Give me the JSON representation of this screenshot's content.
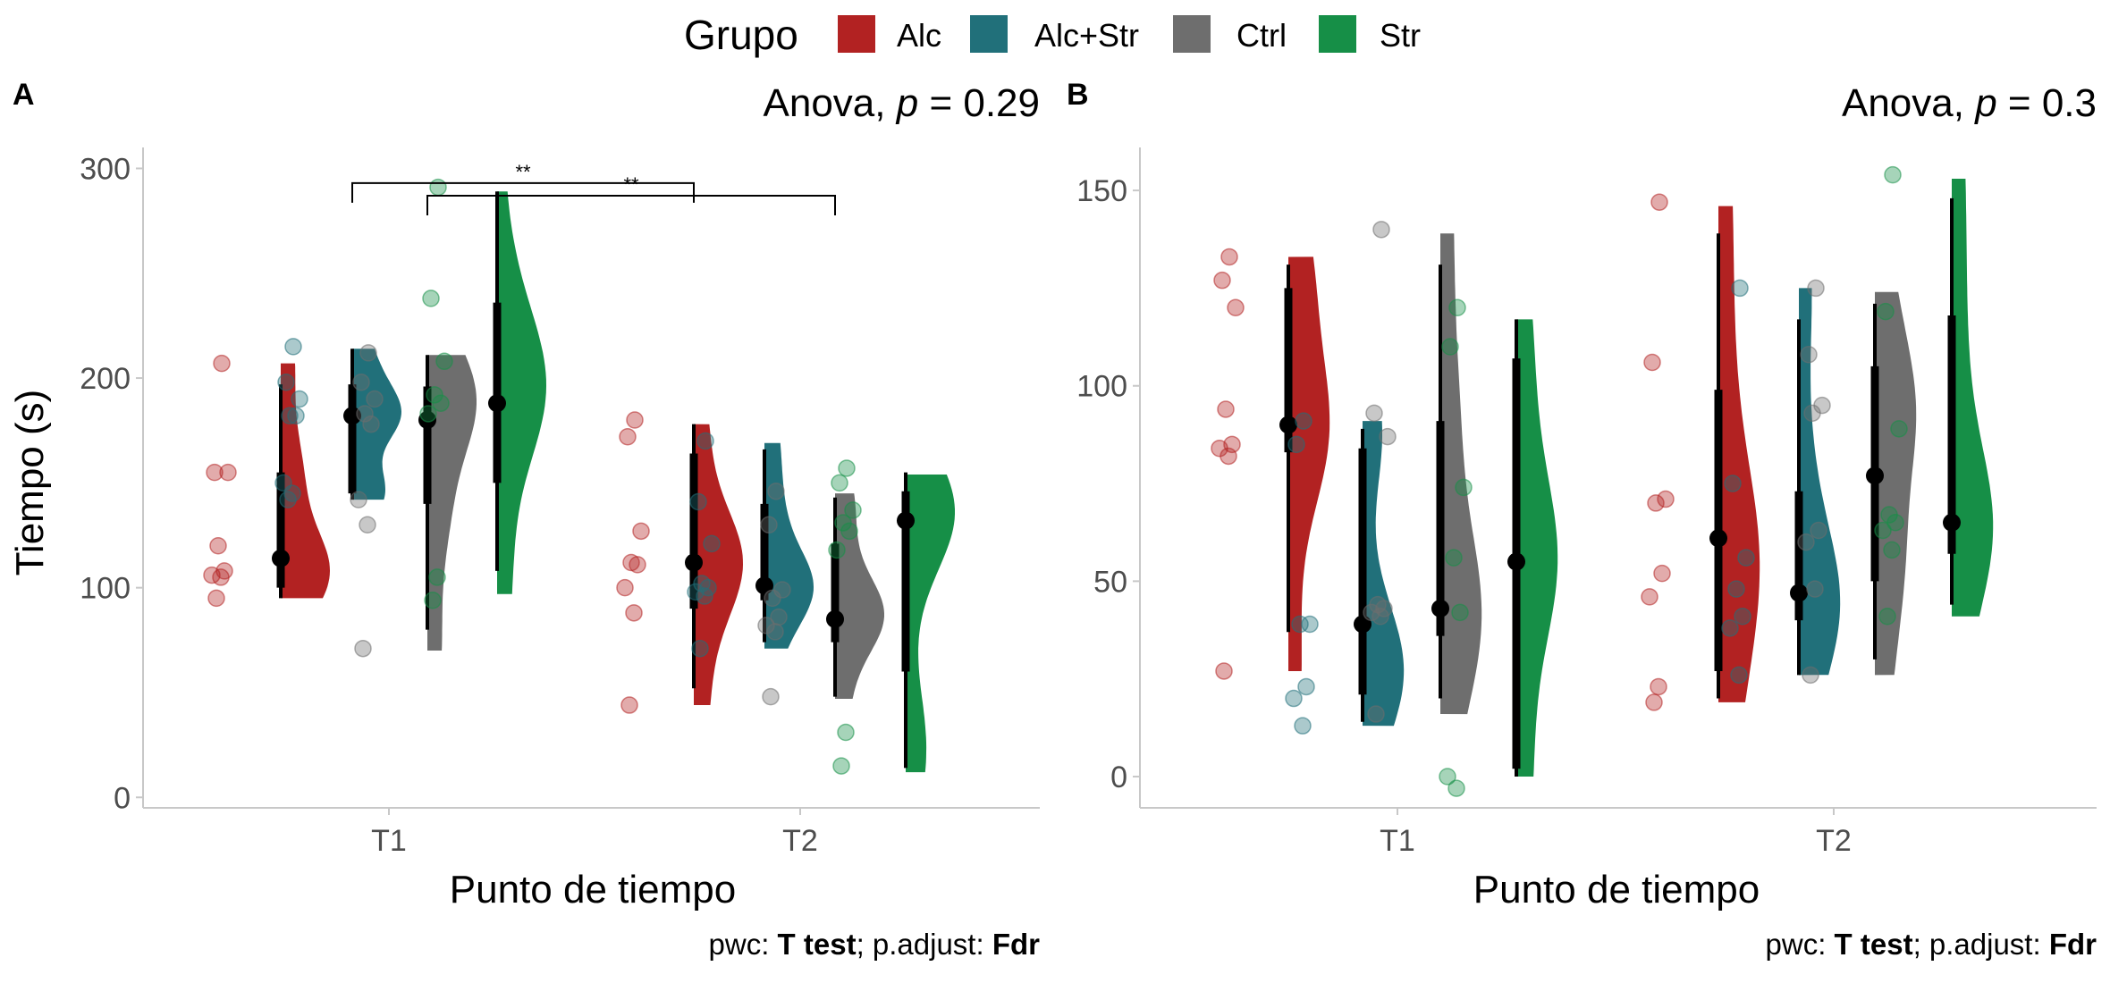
{
  "legend": {
    "title": "Grupo",
    "items": [
      {
        "label": "Alc",
        "color": "#b22222"
      },
      {
        "label": "Alc+Str",
        "color": "#21707a"
      },
      {
        "label": "Ctrl",
        "color": "#6e6e6e"
      },
      {
        "label": "Str",
        "color": "#168f47"
      }
    ]
  },
  "chart_data": [
    {
      "panel": "A",
      "type": "raincloud",
      "title": "Anova, p = 0.29",
      "title_parts": {
        "prefix": "Anova, ",
        "p": "p",
        "suffix": " = 0.29"
      },
      "xlabel": "Punto de tiempo",
      "ylabel": "Tiempo (s)",
      "caption": {
        "pre": "pwc: ",
        "test": "T test",
        "mid": "; p.adjust: ",
        "adj": "Fdr"
      },
      "ylim": [
        -5,
        310
      ],
      "yticks": [
        0,
        100,
        200,
        300
      ],
      "categories": [
        "T1",
        "T2"
      ],
      "groups": [
        "Alc",
        "Alc+Str",
        "Ctrl",
        "Str"
      ],
      "series": {
        "T1": {
          "Alc": {
            "points": [
              207,
              155,
              155,
              120,
              108,
              106,
              105,
              95
            ],
            "median": 114,
            "q1": 100,
            "q3": 155,
            "min": 95,
            "max": 197,
            "vmin": 95,
            "vmax": 207,
            "mode": 108
          },
          "Alc+Str": {
            "points": [
              215,
              198,
              190,
              182,
              182,
              150,
              145,
              142
            ],
            "median": 182,
            "q1": 145,
            "q3": 197,
            "min": 142,
            "max": 214,
            "vmin": 142,
            "vmax": 214,
            "mode": 178
          },
          "Ctrl": {
            "points": [
              212,
              198,
              190,
              183,
              178,
              142,
              130,
              71
            ],
            "median": 180,
            "q1": 140,
            "q3": 196,
            "min": 80,
            "max": 211,
            "vmin": 70,
            "vmax": 211,
            "mode": 190
          },
          "Str": {
            "points": [
              291,
              238,
              208,
              192,
              188,
              183,
              105,
              94
            ],
            "median": 188,
            "q1": 150,
            "q3": 236,
            "min": 108,
            "max": 289,
            "vmin": 97,
            "vmax": 289,
            "mode": 195
          }
        },
        "T2": {
          "Alc": {
            "points": [
              180,
              172,
              127,
              112,
              111,
              100,
              88,
              44
            ],
            "median": 112,
            "q1": 90,
            "q3": 164,
            "min": 52,
            "max": 178,
            "vmin": 44,
            "vmax": 178,
            "mode": 118
          },
          "Alc+Str": {
            "points": [
              170,
              141,
              121,
              102,
              100,
              98,
              96,
              71
            ],
            "median": 101,
            "q1": 94,
            "q3": 140,
            "min": 74,
            "max": 166,
            "vmin": 71,
            "vmax": 169,
            "mode": 100
          },
          "Ctrl": {
            "points": [
              146,
              130,
              99,
              95,
              86,
              82,
              79,
              48
            ],
            "median": 85,
            "q1": 74,
            "q3": 121,
            "min": 48,
            "max": 143,
            "vmin": 47,
            "vmax": 145,
            "mode": 86
          },
          "Str": {
            "points": [
              157,
              150,
              137,
              131,
              127,
              118,
              31,
              15
            ],
            "median": 132,
            "q1": 60,
            "q3": 146,
            "min": 14,
            "max": 155,
            "vmin": 12,
            "vmax": 154,
            "mode": 145
          }
        }
      },
      "brackets": [
        {
          "from": "T1-Alc+Str",
          "to": "T2-Alc",
          "y": 293,
          "label": "**"
        },
        {
          "from": "T1-Ctrl",
          "to": "T2-Ctrl",
          "y": 287,
          "label": "**"
        }
      ]
    },
    {
      "panel": "B",
      "type": "raincloud",
      "title": "Anova, p = 0.3",
      "title_parts": {
        "prefix": "Anova, ",
        "p": "p",
        "suffix": " = 0.3"
      },
      "xlabel": "Punto de tiempo",
      "ylabel": "",
      "caption": {
        "pre": "pwc: ",
        "test": "T test",
        "mid": "; p.adjust: ",
        "adj": "Fdr"
      },
      "ylim": [
        -8,
        161
      ],
      "yticks": [
        0,
        50,
        100,
        150
      ],
      "categories": [
        "T1",
        "T2"
      ],
      "groups": [
        "Alc",
        "Alc+Str",
        "Ctrl",
        "Str"
      ],
      "series": {
        "T1": {
          "Alc": {
            "points": [
              133,
              127,
              120,
              94,
              85,
              84,
              82,
              27
            ],
            "median": 90,
            "q1": 83,
            "q3": 125,
            "min": 37,
            "max": 131,
            "vmin": 27,
            "vmax": 133,
            "mode": 90
          },
          "Alc+Str": {
            "points": [
              91,
              85,
              39,
              39,
              23,
              20,
              13
            ],
            "median": 39,
            "q1": 21,
            "q3": 84,
            "min": 14,
            "max": 89,
            "vmin": 13,
            "vmax": 91,
            "mode": 28
          },
          "Ctrl": {
            "points": [
              140,
              93,
              87,
              44,
              43,
              42,
              41,
              16
            ],
            "median": 43,
            "q1": 36,
            "q3": 91,
            "min": 20,
            "max": 131,
            "vmin": 16,
            "vmax": 139,
            "mode": 42
          },
          "Str": {
            "points": [
              120,
              110,
              74,
              56,
              42,
              0,
              -3
            ],
            "median": 55,
            "q1": 2,
            "q3": 107,
            "min": 0,
            "max": 117,
            "vmin": 0,
            "vmax": 117,
            "mode": 55
          }
        },
        "T2": {
          "Alc": {
            "points": [
              147,
              106,
              71,
              70,
              52,
              46,
              23,
              19
            ],
            "median": 61,
            "q1": 27,
            "q3": 99,
            "min": 20,
            "max": 139,
            "vmin": 19,
            "vmax": 146,
            "mode": 55
          },
          "Alc+Str": {
            "points": [
              125,
              75,
              56,
              48,
              41,
              38,
              26
            ],
            "median": 47,
            "q1": 40,
            "q3": 73,
            "min": 26,
            "max": 117,
            "vmin": 26,
            "vmax": 125,
            "mode": 45
          },
          "Ctrl": {
            "points": [
              125,
              108,
              95,
              93,
              63,
              60,
              48,
              26
            ],
            "median": 77,
            "q1": 50,
            "q3": 105,
            "min": 30,
            "max": 121,
            "vmin": 26,
            "vmax": 124,
            "mode": 90
          },
          "Str": {
            "points": [
              154,
              119,
              89,
              67,
              65,
              63,
              58,
              41
            ],
            "median": 65,
            "q1": 57,
            "q3": 118,
            "min": 44,
            "max": 148,
            "vmin": 41,
            "vmax": 153,
            "mode": 65
          }
        }
      },
      "brackets": []
    }
  ]
}
